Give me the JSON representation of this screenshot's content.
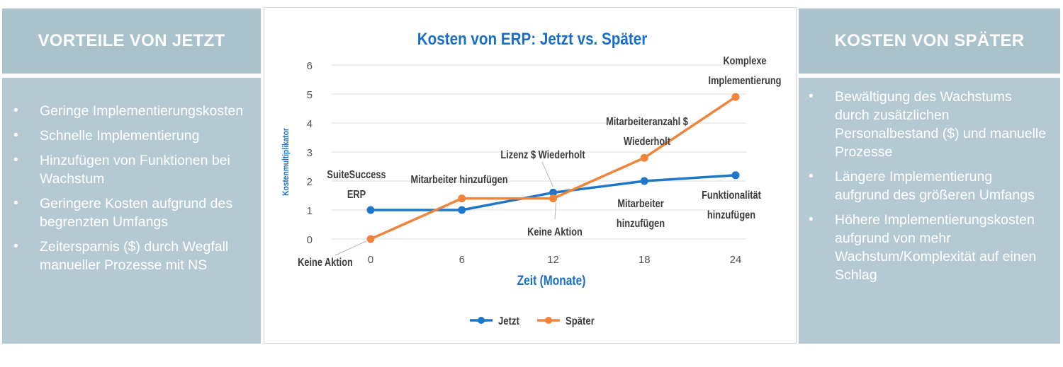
{
  "left_panel": {
    "title": "VORTEILE VON JETZT",
    "items": [
      "Geringe Implementierungskosten",
      "Schnelle Implementierung",
      "Hinzufügen von Funktionen bei Wachstum",
      "Geringere Kosten aufgrund des begrenzten Umfangs",
      "Zeitersparnis ($) durch Wegfall manueller Prozesse mit NS"
    ]
  },
  "right_panel": {
    "title": "KOSTEN VON SPÄTER",
    "items": [
      "Bewältigung des Wachstums durch zusätzlichen Personalbestand ($) und manuelle Prozesse",
      "Längere Implementierung aufgrund des größeren Umfangs",
      "Höhere Implementierungskosten aufgrund von mehr Wachstum/Komplexität auf einen Schlag"
    ]
  },
  "chart_data": {
    "type": "line",
    "title": "Kosten von ERP: Jetzt vs. Später",
    "xlabel": "Zeit (Monate)",
    "ylabel": "Kostenmultiplikator",
    "x": [
      0,
      6,
      12,
      18,
      24
    ],
    "xlim": [
      0,
      24
    ],
    "ylim": [
      0,
      6
    ],
    "yticks": [
      0,
      1,
      2,
      3,
      4,
      5,
      6
    ],
    "grid": "horizontal",
    "legend": "bottom",
    "series": [
      {
        "name": "Jetzt",
        "color": "#1f77c9",
        "values": [
          1,
          1,
          1.6,
          2,
          2.2
        ]
      },
      {
        "name": "Später",
        "color": "#f0843a",
        "values": [
          0,
          1.4,
          1.4,
          2.8,
          4.9
        ]
      }
    ],
    "annotations": [
      {
        "lines": [
          "SuiteSuccess",
          "ERP"
        ]
      },
      {
        "lines": [
          "Keine Aktion"
        ]
      },
      {
        "lines": [
          "Mitarbeiter hinzufügen"
        ]
      },
      {
        "lines": [
          "Lizenz $ Wiederholt"
        ]
      },
      {
        "lines": [
          "Keine Aktion"
        ]
      },
      {
        "lines": [
          "Mitarbeiteranzahl $",
          "Wiederholt"
        ]
      },
      {
        "lines": [
          "Mitarbeiter",
          "hinzufügen"
        ]
      },
      {
        "lines": [
          "Komplexe",
          "Implementierung"
        ]
      },
      {
        "lines": [
          "Funktionalität",
          "hinzufügen"
        ]
      }
    ]
  }
}
